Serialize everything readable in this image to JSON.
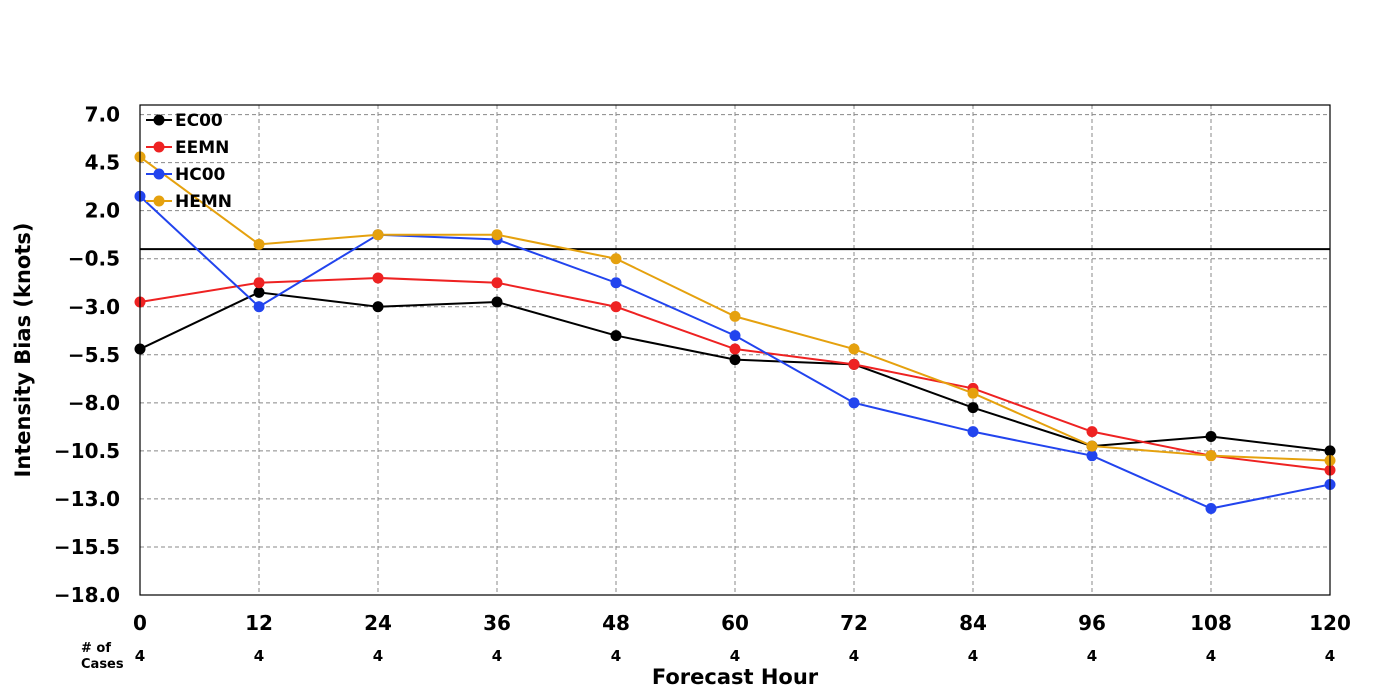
{
  "chart_data": {
    "type": "line",
    "xlabel": "Forecast Hour",
    "ylabel": "Intensity Bias (knots)",
    "x": [
      0,
      12,
      24,
      36,
      48,
      60,
      72,
      84,
      96,
      108,
      120
    ],
    "x_tick_labels": [
      "0",
      "12",
      "24",
      "36",
      "48",
      "60",
      "72",
      "84",
      "96",
      "108",
      "120"
    ],
    "xlim": [
      0,
      120
    ],
    "ylim": [
      -18.0,
      7.5
    ],
    "y_ticks": [
      7.0,
      4.5,
      2.0,
      -0.5,
      -3.0,
      -5.5,
      -8.0,
      -10.5,
      -13.0,
      -15.5,
      -18.0
    ],
    "y_tick_labels": [
      "7.0",
      "4.5",
      "2.0",
      "−0.5",
      "−3.0",
      "−5.5",
      "−8.0",
      "−10.5",
      "−13.0",
      "−15.5",
      "−18.0"
    ],
    "zero_line": 0,
    "grid": true,
    "legend_position": "top-left",
    "cases_label": "# of\nCases",
    "cases": [
      "4",
      "4",
      "4",
      "4",
      "4",
      "4",
      "4",
      "4",
      "4",
      "4",
      "4"
    ],
    "series": [
      {
        "name": "EC00",
        "color": "#000000",
        "values": [
          -5.2,
          -2.25,
          -3.0,
          -2.75,
          -4.5,
          -5.75,
          -6.0,
          -8.25,
          -10.25,
          -9.75,
          -10.5
        ]
      },
      {
        "name": "EEMN",
        "color": "#ee2222",
        "values": [
          -2.75,
          -1.75,
          -1.5,
          -1.75,
          -3.0,
          -5.2,
          -6.0,
          -7.25,
          -9.5,
          -10.75,
          -11.5
        ]
      },
      {
        "name": "HC00",
        "color": "#2244ee",
        "values": [
          2.75,
          -3.0,
          0.75,
          0.5,
          -1.75,
          -4.5,
          -8.0,
          -9.5,
          -10.75,
          -13.5,
          -12.25
        ]
      },
      {
        "name": "HEMN",
        "color": "#e5a10e",
        "values": [
          4.8,
          0.25,
          0.75,
          0.75,
          -0.5,
          -3.5,
          -5.2,
          -7.5,
          -10.25,
          -10.75,
          -11.0
        ]
      }
    ]
  }
}
